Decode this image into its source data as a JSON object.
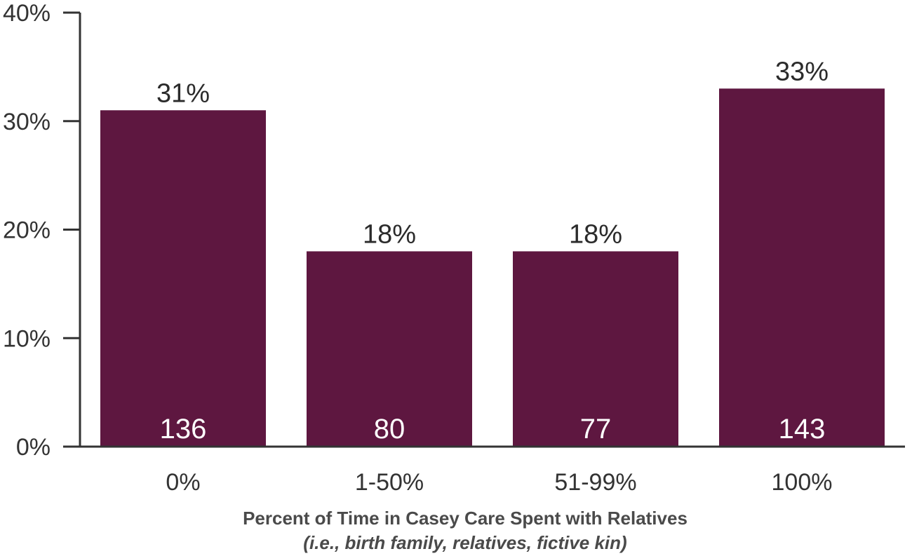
{
  "chart_data": {
    "type": "bar",
    "categories": [
      "0%",
      "1-50%",
      "51-99%",
      "100%"
    ],
    "values": [
      31,
      18,
      18,
      33
    ],
    "value_labels": [
      "31%",
      "18%",
      "18%",
      "33%"
    ],
    "counts": [
      "136",
      "80",
      "77",
      "143"
    ],
    "xlabel": "Percent of Time in Casey Care Spent with Relatives",
    "xsublabel": "(i.e., birth family, relatives, fictive kin)",
    "ylabel": "",
    "ylim": [
      0,
      40
    ],
    "yticks": [
      0,
      10,
      20,
      30,
      40
    ],
    "ytick_labels": [
      "0%",
      "10%",
      "20%",
      "30%",
      "40%"
    ],
    "grid": false,
    "bar_color": "#5e1740",
    "axis_color": "#333333"
  }
}
